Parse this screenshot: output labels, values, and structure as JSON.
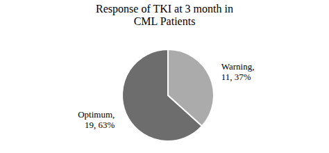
{
  "chart_data": {
    "type": "pie",
    "title": "Response of TKI at 3 month in\nCML Patients",
    "values": [
      19,
      11
    ],
    "value_labels": [
      "Optimum,\n19, 63%",
      "Warning,\n11, 37%"
    ],
    "colors": [
      "#6d6d6d",
      "#ababab"
    ],
    "data_labels": true
  }
}
